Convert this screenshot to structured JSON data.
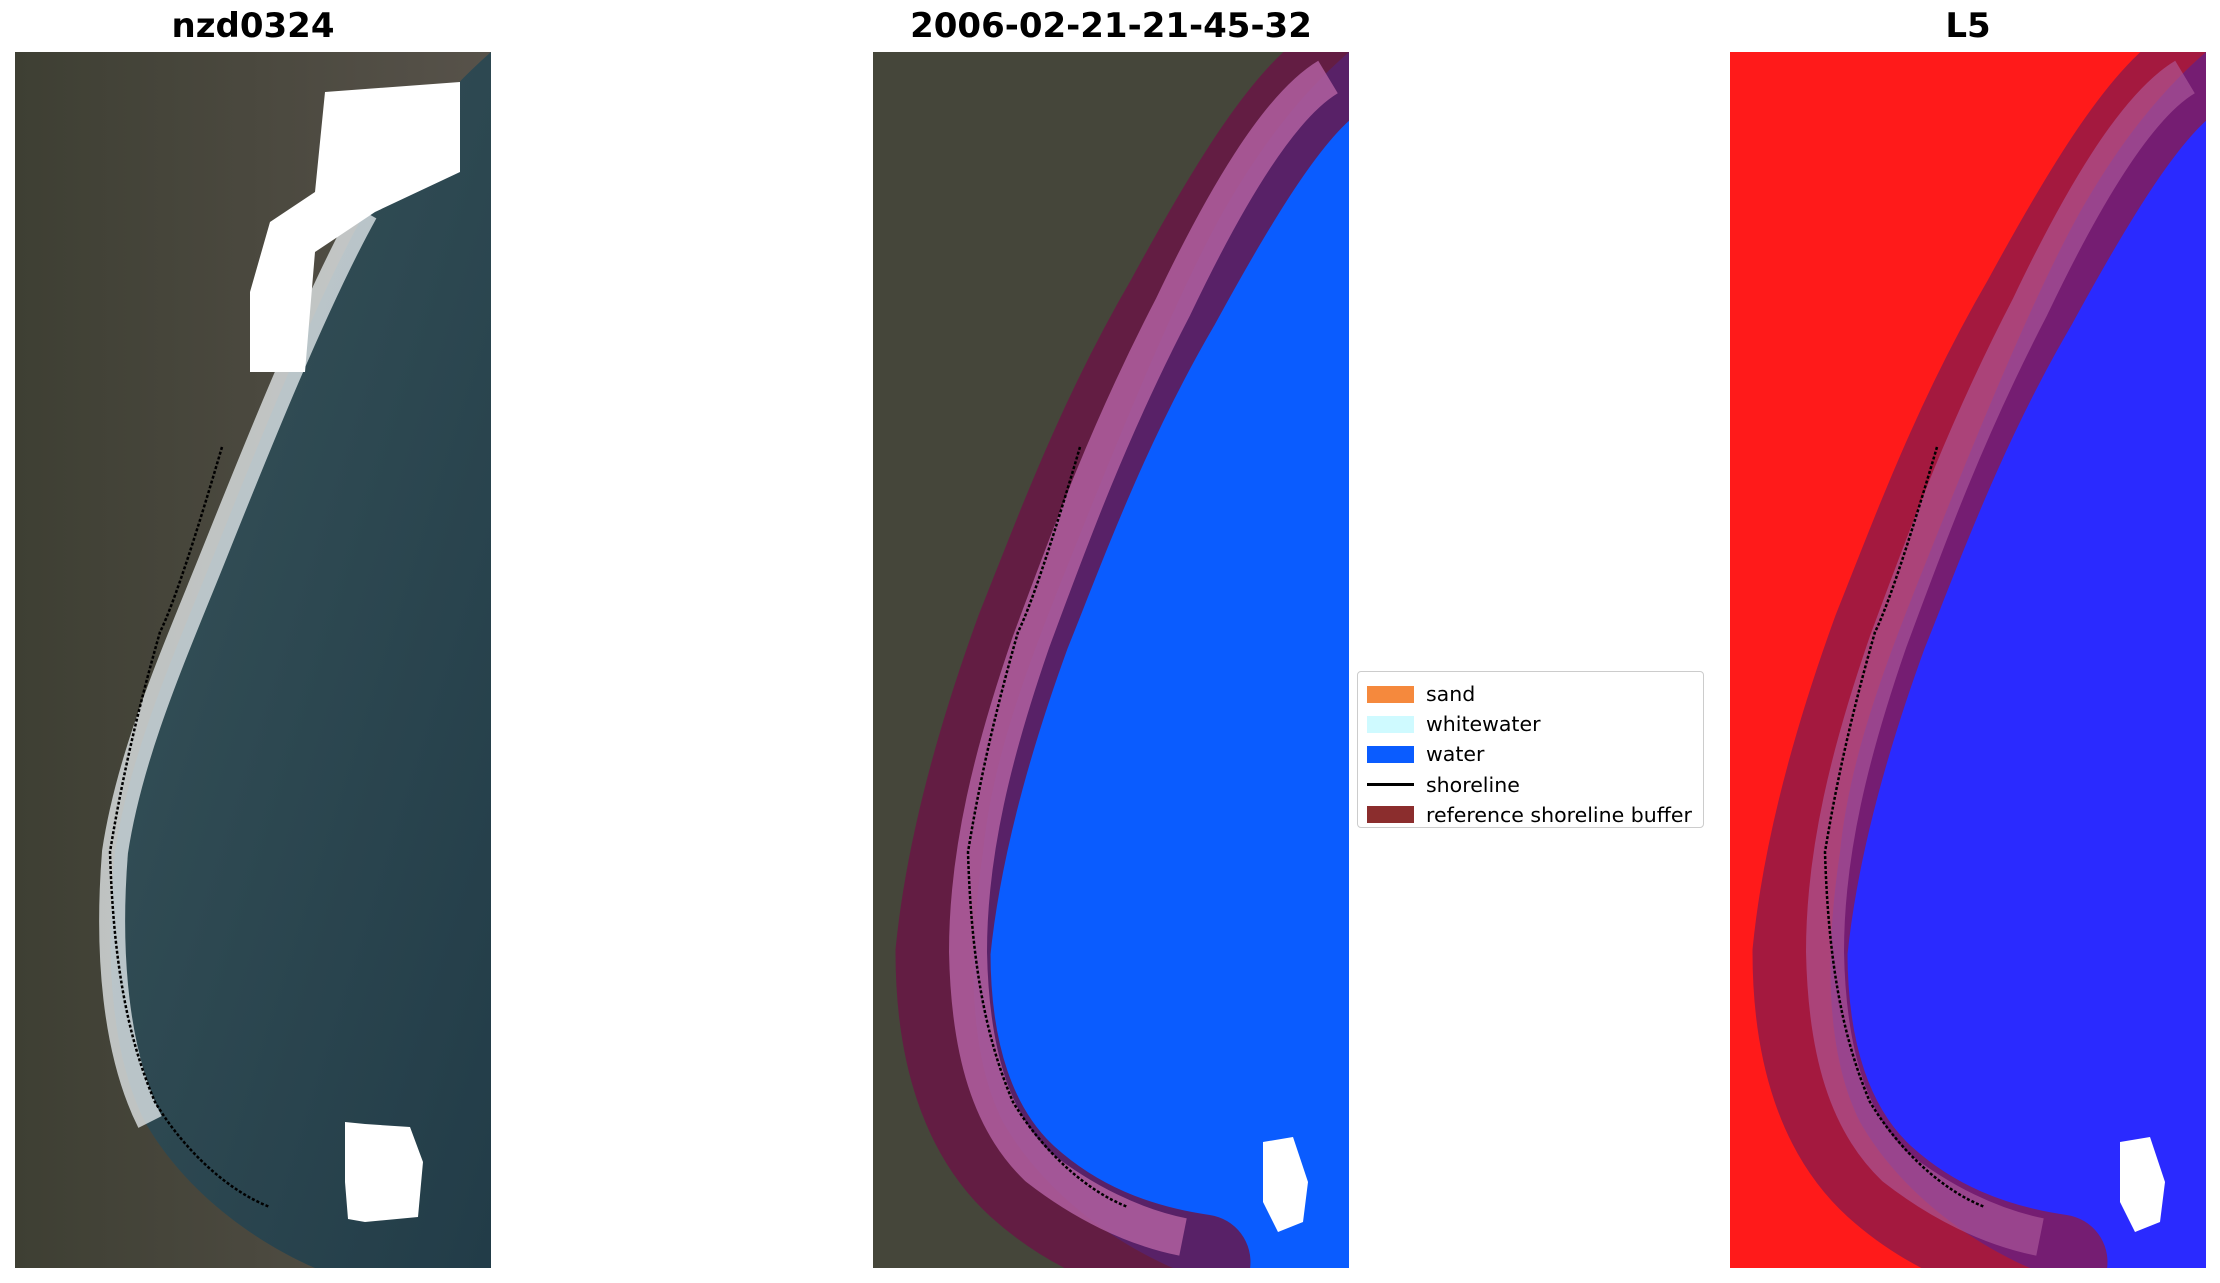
{
  "figure": {
    "panels": [
      {
        "title": "nzd0324"
      },
      {
        "title": "2006-02-21-21-45-32"
      },
      {
        "title": "L5"
      }
    ],
    "legend": {
      "placement": "center, between 2nd and 3rd panel",
      "items": [
        {
          "label": "sand",
          "color": "#f5893d",
          "kind": "patch"
        },
        {
          "label": "whitewater",
          "color": "#cffaff",
          "kind": "patch"
        },
        {
          "label": "water",
          "color": "#0a5cff",
          "kind": "patch"
        },
        {
          "label": "shoreline",
          "color": "#000000",
          "kind": "line"
        },
        {
          "label": "reference shoreline buffer",
          "color": "#8b2d2d",
          "kind": "patch"
        }
      ]
    },
    "colors": {
      "land": "#45463a",
      "sea": "#2e4a52",
      "masked_cloud": "#ffffff",
      "buffer_overlay": "#7a1a4a",
      "classified_water": "#0a5cff",
      "index_land": "#ff1a1a",
      "index_water": "#2a2aff"
    }
  }
}
